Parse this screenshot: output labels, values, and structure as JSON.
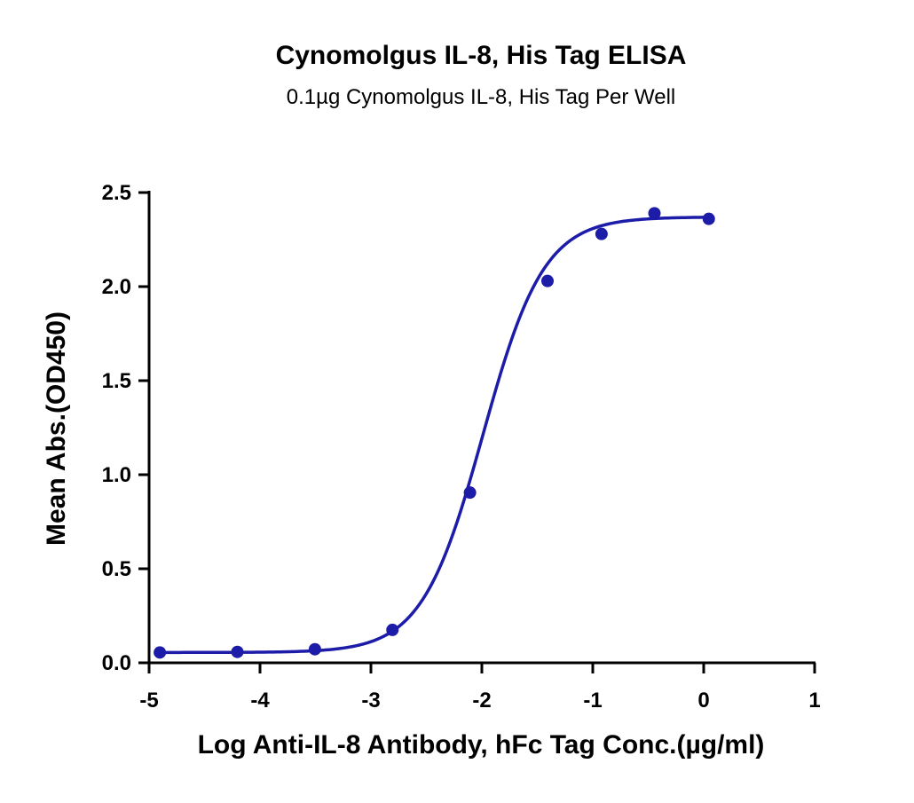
{
  "chart_data": {
    "type": "scatter",
    "title": "Cynomolgus IL-8, His Tag ELISA",
    "subtitle": "0.1µg Cynomolgus IL-8, His Tag Per Well",
    "xlabel": "Log Anti-IL-8 Antibody, hFc Tag Conc.(µg/ml)",
    "ylabel": "Mean Abs.(OD450)",
    "xlim": [
      -5,
      1
    ],
    "ylim": [
      0,
      2.5
    ],
    "x_ticks": [
      "-5",
      "-4",
      "-3",
      "-2",
      "-1",
      "0",
      "1"
    ],
    "y_ticks": [
      "0.0",
      "0.5",
      "1.0",
      "1.5",
      "2.0",
      "2.5"
    ],
    "grid": false,
    "legend": "none",
    "series": [
      {
        "x": [
          -4.903,
          -4.204,
          -3.505,
          -2.806,
          -2.107,
          -1.408,
          -0.921,
          -0.444,
          0.046
        ],
        "y": [
          0.055,
          0.058,
          0.072,
          0.175,
          0.905,
          2.03,
          2.28,
          2.39,
          2.36
        ],
        "fit": {
          "model": "4PL",
          "bottom": 0.055,
          "top": 2.37,
          "logEC50": -1.99,
          "hillslope": 1.58
        }
      }
    ],
    "colors": {
      "series": "#1c1ca8",
      "axis": "#000000"
    }
  }
}
